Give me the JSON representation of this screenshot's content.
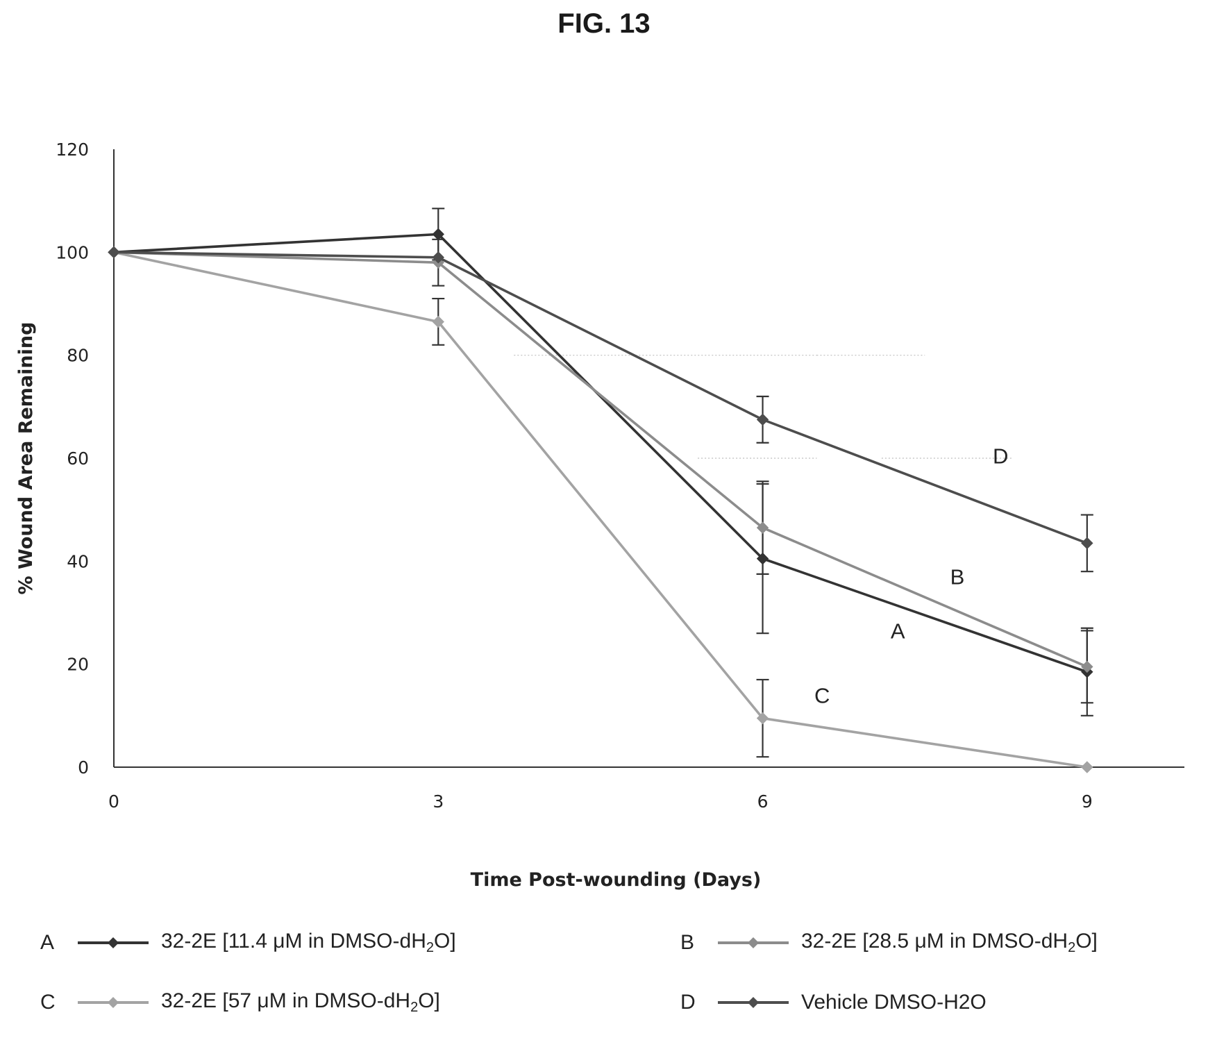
{
  "figure_label": "FIG. 13",
  "chart_data": {
    "type": "line",
    "title": "",
    "xlabel": "Time Post-wounding (Days)",
    "ylabel": "% Wound Area Remaining",
    "x": [
      0,
      3,
      6,
      9
    ],
    "x_ticks": [
      0,
      3,
      6,
      9
    ],
    "y_ticks": [
      0,
      20,
      40,
      60,
      80,
      100,
      120
    ],
    "xlim": [
      0,
      9.9
    ],
    "ylim": [
      0,
      120
    ],
    "grid": "faint dotted partial horizontal lines",
    "legend_position": "bottom",
    "series": [
      {
        "name": "32-2E [11.4 μM in DMSO-dH2O]",
        "letter": "A",
        "legend_prefix": "32-2E [11.4 μM in DMSO-dH",
        "legend_sub": "2",
        "legend_suffix": "O]",
        "color": "#333333",
        "values": [
          100,
          103.5,
          40.5,
          18.5
        ],
        "error": [
          0,
          5,
          14.5,
          8.5
        ]
      },
      {
        "name": "32-2E [28.5 μM in DMSO-dH2O]",
        "letter": "B",
        "legend_prefix": "32-2E [28.5 μM in DMSO-dH",
        "legend_sub": "2",
        "legend_suffix": "O]",
        "color": "#8c8c8c",
        "values": [
          100,
          98,
          46.5,
          19.5
        ],
        "error": [
          0,
          4.5,
          9,
          7
        ]
      },
      {
        "name": "32-2E [57 μM in DMSO-dH2O]",
        "letter": "C",
        "legend_prefix": "32-2E [57 μM in DMSO-dH",
        "legend_sub": "2",
        "legend_suffix": "O]",
        "color": "#a3a3a3",
        "values": [
          100,
          86.5,
          9.5,
          0
        ],
        "error": [
          0,
          4.5,
          7.5,
          0
        ]
      },
      {
        "name": "Vehicle DMSO-H2O",
        "letter": "D",
        "legend_prefix": "Vehicle DMSO-H2O",
        "legend_sub": "",
        "legend_suffix": "",
        "color": "#4d4d4d",
        "values": [
          100,
          99,
          67.5,
          43.5
        ],
        "error": [
          0,
          0,
          4.5,
          5.5
        ]
      }
    ],
    "annotations": [
      {
        "text": "D",
        "x": 8.2,
        "y": 59
      },
      {
        "text": "B",
        "x": 7.8,
        "y": 35.5
      },
      {
        "text": "A",
        "x": 7.25,
        "y": 25
      },
      {
        "text": "C",
        "x": 6.55,
        "y": 12.5
      }
    ]
  }
}
